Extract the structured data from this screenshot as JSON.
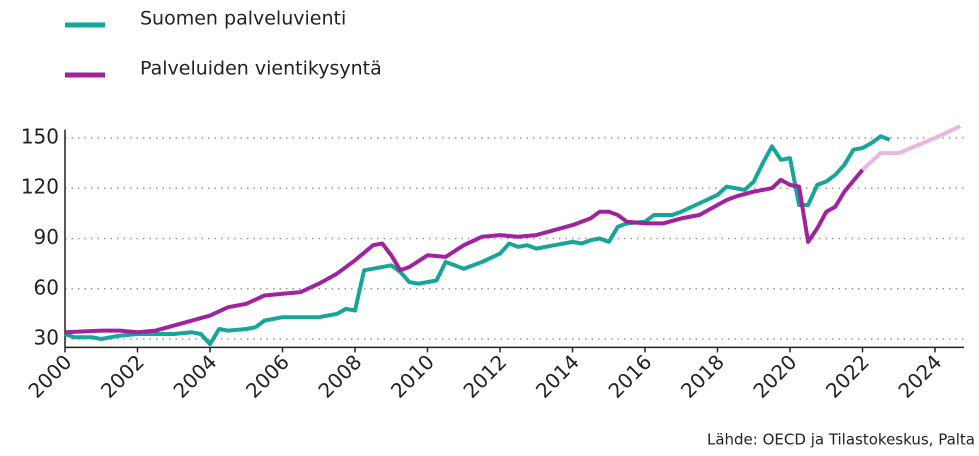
{
  "chart_data": {
    "type": "line",
    "xlim": [
      2000,
      2024.8
    ],
    "xticks": [
      2000,
      2002,
      2004,
      2006,
      2008,
      2010,
      2012,
      2014,
      2016,
      2018,
      2020,
      2022,
      2024
    ],
    "ylim": [
      25,
      155
    ],
    "yticks": [
      30,
      60,
      90,
      120,
      150
    ],
    "grid": true,
    "legend": "top-left",
    "source": "Lähde: OECD ja Tilastokeskus, Palta",
    "series": [
      {
        "name": "Suomen palveluvienti",
        "color": "#17a59a",
        "x": [
          2000,
          2000.25,
          2000.5,
          2000.75,
          2001,
          2001.25,
          2001.5,
          2002,
          2002.5,
          2003,
          2003.5,
          2003.75,
          2004,
          2004.25,
          2004.5,
          2005,
          2005.25,
          2005.5,
          2006,
          2006.5,
          2007,
          2007.5,
          2007.75,
          2008,
          2008.25,
          2008.5,
          2009,
          2009.25,
          2009.5,
          2009.75,
          2010,
          2010.25,
          2010.5,
          2010.75,
          2011,
          2011.5,
          2012,
          2012.25,
          2012.5,
          2012.75,
          2013,
          2013.5,
          2014,
          2014.25,
          2014.5,
          2014.75,
          2015,
          2015.25,
          2015.5,
          2016,
          2016.25,
          2016.75,
          2017,
          2017.5,
          2018,
          2018.25,
          2018.75,
          2019,
          2019.25,
          2019.5,
          2019.75,
          2020,
          2020.25,
          2020.5,
          2020.75,
          2021,
          2021.25,
          2021.5,
          2021.75,
          2022,
          2022.25,
          2022.5,
          2022.75
        ],
        "values": [
          33,
          31,
          31,
          31,
          30,
          31,
          32,
          33,
          33,
          33,
          34,
          33,
          27,
          36,
          35,
          36,
          37,
          41,
          43,
          43,
          43,
          45,
          48,
          47,
          71,
          72,
          74,
          70,
          64,
          63,
          64,
          65,
          76,
          74,
          72,
          76,
          81,
          87,
          85,
          86,
          84,
          86,
          88,
          87,
          89,
          90,
          88,
          97,
          99,
          100,
          104,
          104,
          106,
          111,
          116,
          121,
          119,
          124,
          135,
          145,
          137,
          138,
          110,
          110,
          122,
          124,
          128,
          134,
          143,
          144,
          147,
          151,
          149
        ]
      },
      {
        "name": "Palveluiden vientikysyntä",
        "color": "#a0229e",
        "x": [
          2000,
          2001,
          2001.5,
          2002,
          2002.5,
          2003,
          2003.5,
          2004,
          2004.5,
          2005,
          2005.5,
          2006,
          2006.5,
          2007,
          2007.5,
          2008,
          2008.5,
          2008.75,
          2009,
          2009.25,
          2009.5,
          2010,
          2010.5,
          2011,
          2011.5,
          2012,
          2012.5,
          2013,
          2013.5,
          2014,
          2014.5,
          2014.75,
          2015,
          2015.25,
          2015.5,
          2016,
          2016.5,
          2017,
          2017.5,
          2018,
          2018.25,
          2018.5,
          2019,
          2019.5,
          2019.75,
          2020,
          2020.25,
          2020.5,
          2020.75,
          2021,
          2021.25,
          2021.5,
          2022
        ],
        "values": [
          34,
          35,
          35,
          34,
          35,
          38,
          41,
          44,
          49,
          51,
          56,
          57,
          58,
          63,
          69,
          77,
          86,
          87,
          80,
          71,
          73,
          80,
          79,
          86,
          91,
          92,
          91,
          92,
          95,
          98,
          102,
          106,
          106,
          104,
          100,
          99,
          99,
          102,
          104,
          110,
          113,
          115,
          118,
          120,
          125,
          122,
          121,
          88,
          96,
          106,
          109,
          118,
          131
        ]
      },
      {
        "color": "#e8b6e0",
        "x": [
          2022,
          2022.5,
          2023,
          2024,
          2024.7
        ],
        "values": [
          131,
          141,
          141,
          150,
          157
        ]
      }
    ]
  }
}
